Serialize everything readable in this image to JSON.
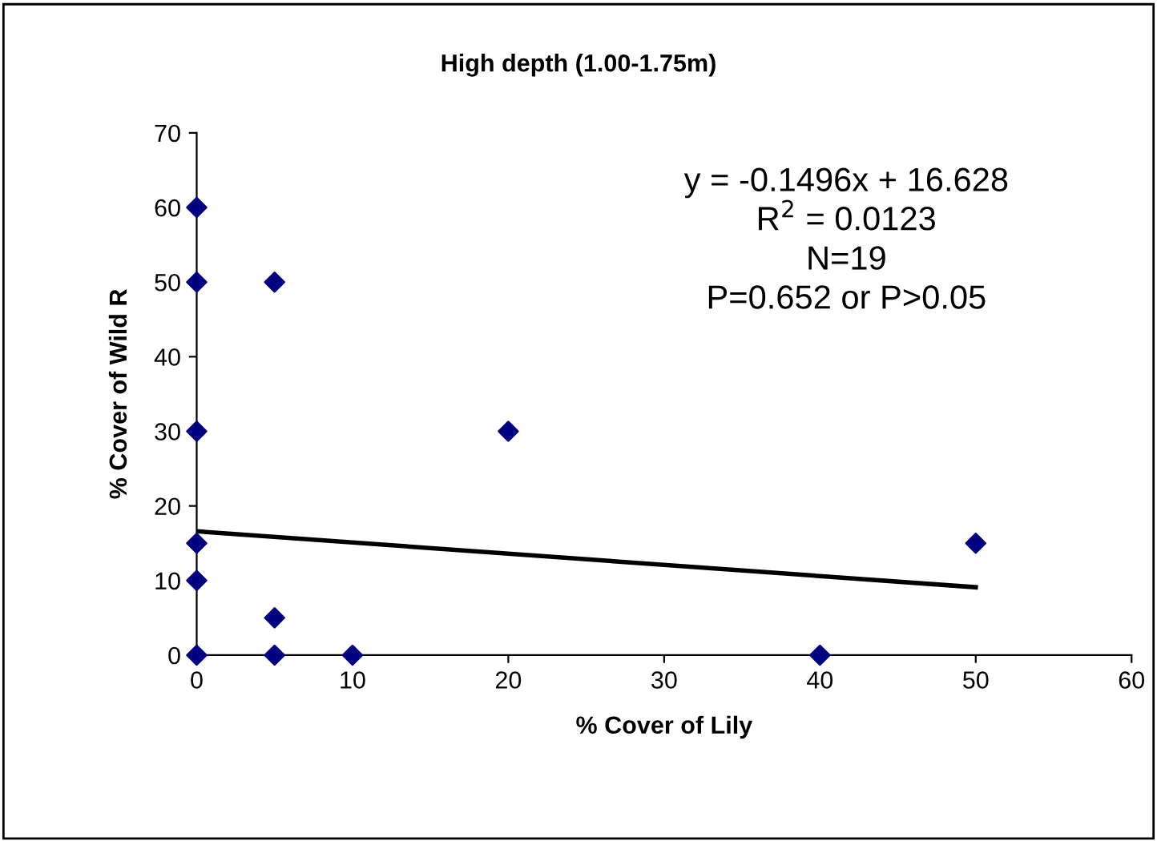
{
  "chart_data": {
    "type": "scatter",
    "title": "High depth (1.00-1.75m)",
    "xlabel": "% Cover of Lily",
    "ylabel": "% Cover of Wild R",
    "series": [
      {
        "color": "#000080",
        "marker": "diamond",
        "x": [
          0,
          0,
          0,
          0,
          0,
          0,
          5,
          5,
          5,
          10,
          20,
          40,
          50
        ],
        "values": [
          60,
          50,
          30,
          15,
          10,
          0,
          50,
          5,
          0,
          0,
          30,
          0,
          15
        ]
      },
      {
        "type": "line",
        "color": "#000000",
        "marker": "none",
        "x": [
          0,
          50
        ],
        "values": [
          16.6,
          9.1
        ]
      }
    ],
    "xlim": [
      0,
      60
    ],
    "xticks": [
      0,
      10,
      20,
      30,
      40,
      50,
      60
    ],
    "ylim": [
      0,
      70
    ],
    "yticks": [
      0,
      10,
      20,
      30,
      40,
      50,
      60,
      70
    ],
    "grid": false,
    "legend": false,
    "annotations": [
      "y = -0.1496x + 16.628",
      "R$^{2}$ = 0.0123",
      "N=19",
      "P=0.652 or P>0.05"
    ]
  }
}
